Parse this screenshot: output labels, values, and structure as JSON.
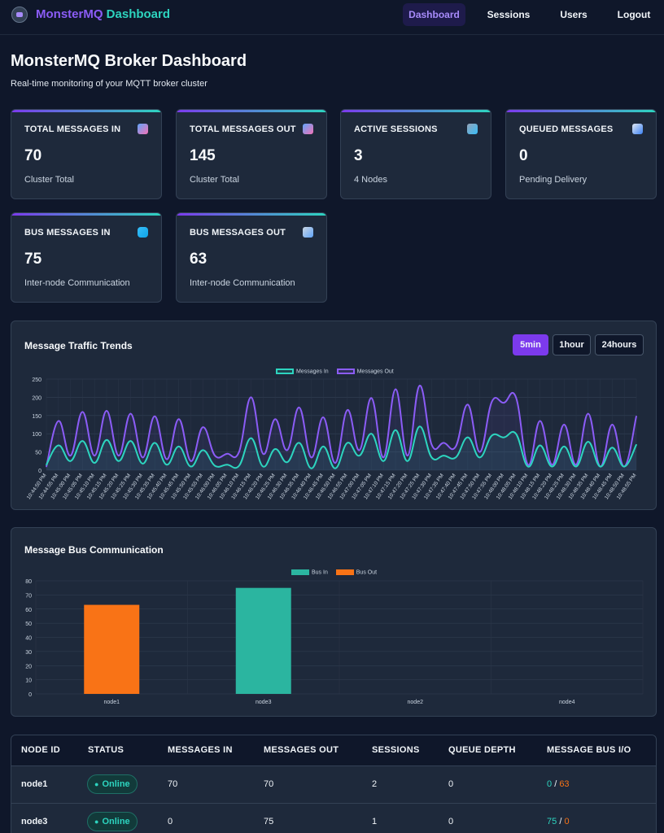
{
  "nav": {
    "brand_part1": "MonsterMQ",
    "brand_part2": "Dashboard",
    "links": [
      "Dashboard",
      "Sessions",
      "Users",
      "Logout"
    ],
    "active": "Dashboard"
  },
  "page": {
    "title": "MonsterMQ Broker Dashboard",
    "subtitle": "Real-time monitoring of your MQTT broker cluster"
  },
  "cards": [
    {
      "label": "TOTAL MESSAGES IN",
      "value": "70",
      "desc": "Cluster Total",
      "icon": "inbox-icon"
    },
    {
      "label": "TOTAL MESSAGES OUT",
      "value": "145",
      "desc": "Cluster Total",
      "icon": "outbox-icon"
    },
    {
      "label": "ACTIVE SESSIONS",
      "value": "3",
      "desc": "4 Nodes",
      "icon": "users-icon"
    },
    {
      "label": "QUEUED MESSAGES",
      "value": "0",
      "desc": "Pending Delivery",
      "icon": "queue-icon"
    },
    {
      "label": "BUS MESSAGES IN",
      "value": "75",
      "desc": "Inter-node Communication",
      "icon": "sync-icon"
    },
    {
      "label": "BUS MESSAGES OUT",
      "value": "63",
      "desc": "Inter-node Communication",
      "icon": "satellite-icon"
    }
  ],
  "traffic": {
    "title": "Message Traffic Trends",
    "ranges": [
      "5min",
      "1hour",
      "24hours"
    ],
    "active_range": "5min"
  },
  "bus": {
    "title": "Message Bus Communication"
  },
  "colors": {
    "messages_in": "#2dd4bf",
    "messages_out": "#8b5cf6",
    "bus_in": "#2bb5a0",
    "bus_out": "#f97316"
  },
  "chart_data": [
    {
      "type": "line",
      "title": "",
      "series": [
        {
          "name": "Messages In",
          "values": [
            15,
            68,
            25,
            80,
            20,
            83,
            25,
            80,
            18,
            75,
            15,
            65,
            10,
            55,
            12,
            15,
            12,
            88,
            10,
            58,
            22,
            75,
            5,
            65,
            5,
            75,
            40,
            100,
            25,
            110,
            25,
            120,
            35,
            40,
            35,
            90,
            35,
            95,
            90,
            100,
            10,
            68,
            10,
            65,
            10,
            78,
            10,
            62,
            10,
            70
          ]
        },
        {
          "name": "Messages Out",
          "values": [
            10,
            135,
            40,
            160,
            40,
            163,
            40,
            155,
            35,
            148,
            30,
            140,
            25,
            118,
            40,
            45,
            50,
            200,
            45,
            140,
            55,
            172,
            35,
            145,
            20,
            165,
            55,
            198,
            35,
            222,
            40,
            232,
            70,
            75,
            65,
            180,
            50,
            188,
            185,
            200,
            15,
            135,
            15,
            125,
            15,
            155,
            10,
            125,
            10,
            148
          ]
        }
      ],
      "x": [
        "10:44:50 PM",
        "10:44:55 PM",
        "10:45:00 PM",
        "10:45:05 PM",
        "10:45:10 PM",
        "10:45:15 PM",
        "10:45:20 PM",
        "10:45:25 PM",
        "10:45:30 PM",
        "10:45:35 PM",
        "10:45:40 PM",
        "10:45:45 PM",
        "10:45:50 PM",
        "10:45:55 PM",
        "10:46:00 PM",
        "10:46:05 PM",
        "10:46:10 PM",
        "10:46:15 PM",
        "10:46:20 PM",
        "10:46:25 PM",
        "10:46:30 PM",
        "10:46:35 PM",
        "10:46:40 PM",
        "10:46:45 PM",
        "10:46:50 PM",
        "10:46:55 PM",
        "10:47:00 PM",
        "10:47:05 PM",
        "10:47:10 PM",
        "10:47:15 PM",
        "10:47:20 PM",
        "10:47:25 PM",
        "10:47:30 PM",
        "10:47:35 PM",
        "10:47:40 PM",
        "10:47:45 PM",
        "10:47:50 PM",
        "10:47:55 PM",
        "10:48:00 PM",
        "10:48:05 PM",
        "10:48:10 PM",
        "10:48:15 PM",
        "10:48:20 PM",
        "10:48:25 PM",
        "10:48:30 PM",
        "10:48:35 PM",
        "10:48:40 PM",
        "10:48:45 PM",
        "10:48:50 PM",
        "10:48:55 PM"
      ],
      "yticks": [
        0,
        50,
        100,
        150,
        200,
        250
      ],
      "ylim": [
        0,
        250
      ],
      "grid": true,
      "legend": "top-center"
    },
    {
      "type": "bar",
      "title": "",
      "categories": [
        "node1",
        "node3",
        "node2",
        "node4"
      ],
      "series": [
        {
          "name": "Bus In",
          "values": [
            0,
            75,
            0,
            0
          ]
        },
        {
          "name": "Bus Out",
          "values": [
            63,
            0,
            0,
            0
          ]
        }
      ],
      "yticks": [
        0,
        10,
        20,
        30,
        40,
        50,
        60,
        70,
        80
      ],
      "ylim": [
        0,
        80
      ],
      "grid": true,
      "legend": "top-center"
    }
  ],
  "table": {
    "headers": [
      "NODE ID",
      "STATUS",
      "MESSAGES IN",
      "MESSAGES OUT",
      "SESSIONS",
      "QUEUE DEPTH",
      "MESSAGE BUS I/O"
    ],
    "rows": [
      {
        "node": "node1",
        "status": "Online",
        "in": "70",
        "out": "70",
        "sessions": "2",
        "queue": "0",
        "bus_in": "0",
        "bus_sep": "/",
        "bus_out": "63"
      },
      {
        "node": "node3",
        "status": "Online",
        "in": "0",
        "out": "75",
        "sessions": "1",
        "queue": "0",
        "bus_in": "75",
        "bus_sep": "/",
        "bus_out": "0"
      }
    ]
  }
}
